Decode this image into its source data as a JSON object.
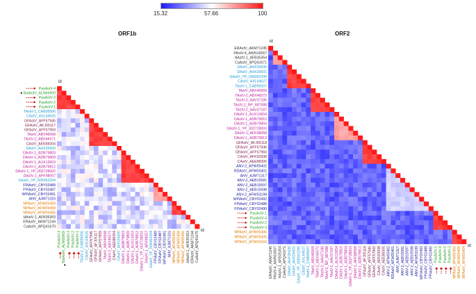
{
  "legend": {
    "min": "15.32",
    "mid": "57.66",
    "max": "100"
  },
  "colors": {
    "low": "#1a1aff",
    "mid": "#ffffff",
    "high": "#ff1a1a",
    "marker": "#c00000"
  },
  "panels": [
    {
      "title": "ORF1b",
      "id_label": "id",
      "labels": [
        {
          "t": "PasAstV-4",
          "c": "#2ca02c",
          "m": "arrows"
        },
        {
          "t": "BatAstV_ALN66909",
          "c": "#2ca02c",
          "m": "dot"
        },
        {
          "t": "PasAstV-3",
          "c": "#2ca02c",
          "m": "arrows"
        },
        {
          "t": "PasAstV-2",
          "c": "#2ca02c",
          "m": "arrows"
        },
        {
          "t": "PasAstV-1",
          "c": "#2ca02c",
          "m": "arrows"
        },
        {
          "t": "TAstV-1_CAB95006",
          "c": "#1f9bd6"
        },
        {
          "t": "CAstV_AXL64626",
          "c": "#1f9bd6"
        },
        {
          "t": "GFAstV_AFF57945",
          "c": "#7a1a4a"
        },
        {
          "t": "GFAstV_AFJ05117",
          "c": "#7a1a4a"
        },
        {
          "t": "GFAstV_AFF57959",
          "c": "#7a1a4a"
        },
        {
          "t": "TAstV_ABX46568",
          "c": "#c020a0"
        },
        {
          "t": "TAstV-2_ABX46571",
          "c": "#c020a0"
        },
        {
          "t": "CAstV_AEE88304",
          "c": "#7a1a4a"
        },
        {
          "t": "DAstV_AHX26600",
          "c": "#1f9bd6"
        },
        {
          "t": "DAstV-1_ADB79803",
          "c": "#c020a0"
        },
        {
          "t": "DAstV-1_ADB79809",
          "c": "#c020a0"
        },
        {
          "t": "DAstV-1_AUX13653",
          "c": "#c020a0"
        },
        {
          "t": "DAstV-1_ADB79812",
          "c": "#c020a0"
        },
        {
          "t": "DAstV-1_YP_002728002",
          "c": "#c020a0"
        },
        {
          "t": "DAstV-1_AFK98057",
          "c": "#c020a0"
        },
        {
          "t": "GAstV_YP_009362294",
          "c": "#1f9bd6"
        },
        {
          "t": "FPiAstV_CBY02489",
          "c": "#1a1aa0"
        },
        {
          "t": "FPiAstV_CBY02487",
          "c": "#1a1aa0"
        },
        {
          "t": "WPiAstV_CBY02491",
          "c": "#1a1aa0"
        },
        {
          "t": "ANV_AJM71316",
          "c": "#1a1aa0"
        },
        {
          "t": "NPAstV_AFW05459",
          "c": "#e07b00"
        },
        {
          "t": "NPAstV_AFW05458",
          "c": "#e07b00"
        },
        {
          "t": "NPAstV_AFW05456",
          "c": "#e07b00"
        },
        {
          "t": "HAstV-1_AFB35353",
          "c": "#333333"
        },
        {
          "t": "ERAstV_AKM71244",
          "c": "#333333"
        },
        {
          "t": "CaAstV_APQ41670",
          "c": "#333333"
        }
      ],
      "matrix_blocks": [
        {
          "from": 0,
          "to": 4,
          "level": "high"
        },
        {
          "from": 7,
          "to": 12,
          "level": "high"
        },
        {
          "from": 14,
          "to": 20,
          "level": "high"
        },
        {
          "from": 21,
          "to": 24,
          "level": "mid-high"
        },
        {
          "from": 25,
          "to": 27,
          "level": "high"
        }
      ]
    },
    {
      "title": "ORF2",
      "id_label": "id",
      "labels": [
        {
          "t": "ERAstV_AKM71245",
          "c": "#333333"
        },
        {
          "t": "PAstV-4_AWN16567",
          "c": "#333333"
        },
        {
          "t": "HAstV-1_AFB35354",
          "c": "#333333"
        },
        {
          "t": "CaAstV_APQ41671",
          "c": "#333333"
        },
        {
          "t": "DAstV_AHX26636",
          "c": "#1f9bd6"
        },
        {
          "t": "DAstV_AHX26601",
          "c": "#1f9bd6"
        },
        {
          "t": "GAstV_YP_009362295",
          "c": "#1f9bd6"
        },
        {
          "t": "CAstV_AXL64627",
          "c": "#1f9bd6"
        },
        {
          "t": "TAstV-1_CAB95007",
          "c": "#1f9bd6"
        },
        {
          "t": "TAstV_ABX46569",
          "c": "#c020a0"
        },
        {
          "t": "TAstV-2_ABX46572",
          "c": "#c020a0"
        },
        {
          "t": "TAstV-2_AAV37186",
          "c": "#c020a0"
        },
        {
          "t": "TAstV-2_NP_987088",
          "c": "#c020a0"
        },
        {
          "t": "TAstV-2_AAV37187",
          "c": "#c020a0"
        },
        {
          "t": "DAstV-1_AUX13654",
          "c": "#c020a0"
        },
        {
          "t": "DAstV-1_ADB79810",
          "c": "#c020a0"
        },
        {
          "t": "DAstV-1_ADB79804",
          "c": "#c020a0"
        },
        {
          "t": "DAstV-1_YP_002728003",
          "c": "#c020a0"
        },
        {
          "t": "DAstV-1_AFK98058",
          "c": "#c020a0"
        },
        {
          "t": "DAstV-1_ADB79813",
          "c": "#c020a0"
        },
        {
          "t": "GFAstV_AFJ05118",
          "c": "#7a1a4a"
        },
        {
          "t": "GFAstV_AFF57946",
          "c": "#7a1a4a"
        },
        {
          "t": "GFAstV_AFF57960",
          "c": "#7a1a4a"
        },
        {
          "t": "CAstV_AFK92938",
          "c": "#7a1a4a"
        },
        {
          "t": "CAstV_AEE88305",
          "c": "#7a1a4a"
        },
        {
          "t": "ANV-2_AFW05402",
          "c": "#1a1aa0"
        },
        {
          "t": "RDAstV_AFW05401",
          "c": "#1a1aa0"
        },
        {
          "t": "ANV_AJM71317",
          "c": "#1a1aa0"
        },
        {
          "t": "ANV-2_AEB15581",
          "c": "#1a1aa0"
        },
        {
          "t": "ANV-2_AEB15597",
          "c": "#1a1aa0"
        },
        {
          "t": "ANV-2_AEB15598",
          "c": "#1a1aa0"
        },
        {
          "t": "ANV-2_AFW53199",
          "c": "#1a1aa0"
        },
        {
          "t": "WPiAstV_CBY02492",
          "c": "#1a1aa0"
        },
        {
          "t": "FPiAstV_CBY02488",
          "c": "#1a1aa0"
        },
        {
          "t": "FPiAstV_CBY02490",
          "c": "#1a1aa0"
        },
        {
          "t": "PasAstV-1",
          "c": "#2ca02c",
          "m": "arrows"
        },
        {
          "t": "PasAstV-4",
          "c": "#2ca02c",
          "m": "arrows"
        },
        {
          "t": "PasAstV-2",
          "c": "#2ca02c",
          "m": "arrows"
        },
        {
          "t": "PasAstV-3",
          "c": "#2ca02c",
          "m": "arrows"
        },
        {
          "t": "NPAstV_AFW05406",
          "c": "#e07b00"
        },
        {
          "t": "NPAstV_AFW05405",
          "c": "#e07b00"
        },
        {
          "t": "NPAstV_AFW05404",
          "c": "#e07b00"
        }
      ],
      "matrix_blocks": [
        {
          "from": 1,
          "to": 3,
          "level": "mid-high"
        },
        {
          "from": 4,
          "to": 8,
          "level": "high"
        },
        {
          "from": 9,
          "to": 13,
          "level": "high"
        },
        {
          "from": 14,
          "to": 19,
          "level": "mid-high"
        },
        {
          "from": 20,
          "to": 24,
          "level": "high"
        },
        {
          "from": 25,
          "to": 34,
          "level": "mid"
        },
        {
          "from": 35,
          "to": 38,
          "level": "high"
        },
        {
          "from": 39,
          "to": 41,
          "level": "high"
        }
      ]
    }
  ]
}
